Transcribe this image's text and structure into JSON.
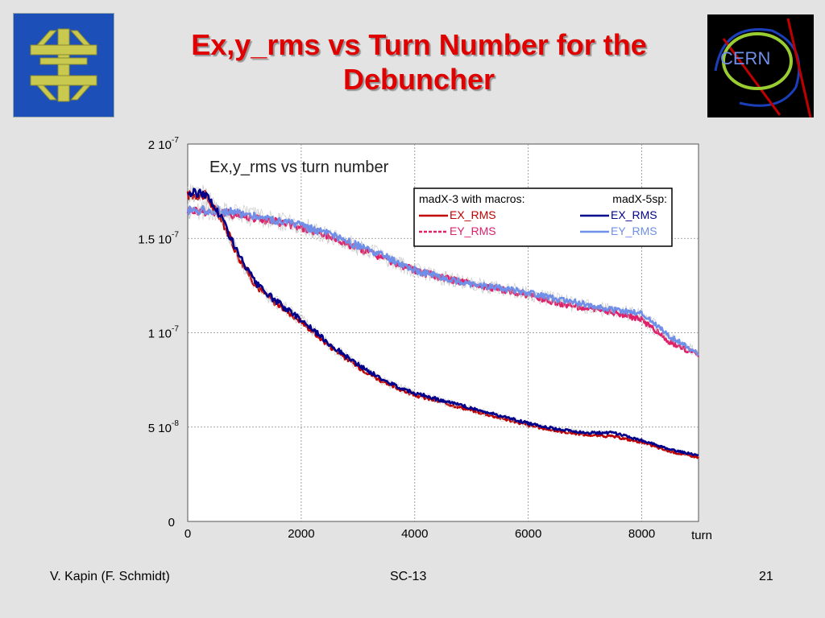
{
  "slide": {
    "title": "Ex,y_rms vs Turn Number for the Debuncher",
    "footer_left": "V. Kapin (F. Schmidt)",
    "footer_center": "SC-13",
    "footer_right": "21",
    "left_logo_icon": "fermilab-logo-icon",
    "right_logo_icon": "cern-logo-icon",
    "right_logo_text": "CERN"
  },
  "chart_data": {
    "type": "line",
    "title": "Ex,y_rms  vs turn number",
    "xlabel": "turn",
    "ylabel": "",
    "xlim": [
      0,
      9000
    ],
    "ylim": [
      0,
      2e-07
    ],
    "x_ticks": [
      0,
      2000,
      4000,
      6000,
      8000
    ],
    "x_tick_labels": [
      "0",
      "2000",
      "4000",
      "6000",
      "8000"
    ],
    "y_ticks": [
      0,
      5e-08,
      1e-07,
      1.5e-07,
      2e-07
    ],
    "y_tick_labels": [
      {
        "base": "0",
        "exp": ""
      },
      {
        "base": "5 10",
        "exp": "-8"
      },
      {
        "base": "1 10",
        "exp": "-7"
      },
      {
        "base": "1.5 10",
        "exp": "-7"
      },
      {
        "base": "2 10",
        "exp": "-7"
      }
    ],
    "grid": true,
    "legend_position": "top-right",
    "legend_headers": [
      "madX-3 with macros:",
      "madX-5sp:"
    ],
    "series": [
      {
        "name": "EX_RMS",
        "group": "madX-3 with macros",
        "color": "#c00000",
        "dash": "solid",
        "x": [
          0,
          300,
          600,
          900,
          1200,
          1500,
          2000,
          2500,
          3000,
          3500,
          4000,
          4500,
          5000,
          5500,
          6000,
          6500,
          7000,
          7500,
          8000,
          8500,
          9000
        ],
        "y": [
          1.73e-07,
          1.73e-07,
          1.6e-07,
          1.4e-07,
          1.25e-07,
          1.17e-07,
          1.06e-07,
          9.3e-08,
          8.2e-08,
          7.3e-08,
          6.7e-08,
          6.3e-08,
          5.9e-08,
          5.5e-08,
          5.1e-08,
          4.8e-08,
          4.6e-08,
          4.5e-08,
          4.2e-08,
          3.7e-08,
          3.4e-08
        ]
      },
      {
        "name": "EY_RMS",
        "group": "madX-3 with macros",
        "color": "#e0206a",
        "dash": "dashed",
        "x": [
          0,
          500,
          1000,
          1500,
          2000,
          2500,
          3000,
          3500,
          4000,
          4500,
          5000,
          5500,
          6000,
          6500,
          7000,
          7500,
          8000,
          8500,
          9000
        ],
        "y": [
          1.65e-07,
          1.64e-07,
          1.62e-07,
          1.59e-07,
          1.56e-07,
          1.51e-07,
          1.45e-07,
          1.39e-07,
          1.33e-07,
          1.29e-07,
          1.26e-07,
          1.23e-07,
          1.2e-07,
          1.16e-07,
          1.13e-07,
          1.11e-07,
          1.07e-07,
          9.5e-08,
          8.8e-08
        ]
      },
      {
        "name": "EX_RMS",
        "group": "madX-5sp",
        "color": "#00008c",
        "dash": "solid",
        "x": [
          0,
          300,
          600,
          900,
          1200,
          1500,
          2000,
          2500,
          3000,
          3500,
          4000,
          4500,
          5000,
          5500,
          6000,
          6500,
          7000,
          7500,
          8000,
          8500,
          9000
        ],
        "y": [
          1.74e-07,
          1.74e-07,
          1.61e-07,
          1.41e-07,
          1.26e-07,
          1.18e-07,
          1.07e-07,
          9.4e-08,
          8.3e-08,
          7.4e-08,
          6.8e-08,
          6.4e-08,
          6e-08,
          5.6e-08,
          5.2e-08,
          4.9e-08,
          4.7e-08,
          4.7e-08,
          4.3e-08,
          3.8e-08,
          3.5e-08
        ]
      },
      {
        "name": "EY_RMS",
        "group": "madX-5sp",
        "color": "#6f8fe8",
        "dash": "solid",
        "x": [
          0,
          500,
          1000,
          1500,
          2000,
          2500,
          3000,
          3500,
          4000,
          4500,
          5000,
          5500,
          6000,
          6500,
          7000,
          7500,
          8000,
          8500,
          9000
        ],
        "y": [
          1.65e-07,
          1.65e-07,
          1.63e-07,
          1.6e-07,
          1.57e-07,
          1.52e-07,
          1.46e-07,
          1.4e-07,
          1.33e-07,
          1.29e-07,
          1.26e-07,
          1.24e-07,
          1.21e-07,
          1.18e-07,
          1.15e-07,
          1.12e-07,
          1.1e-07,
          9.8e-08,
          8.9e-08
        ]
      }
    ]
  }
}
